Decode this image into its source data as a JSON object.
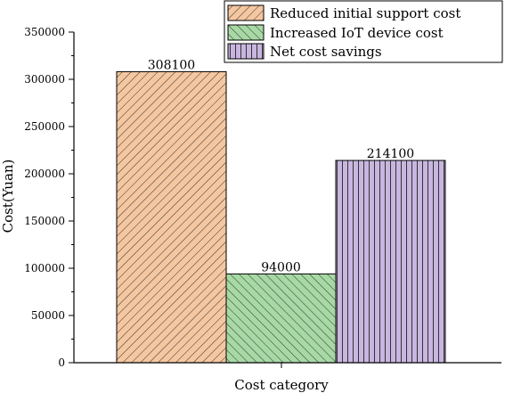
{
  "chart_data": {
    "type": "bar",
    "categories": [
      "Reduced initial support cost",
      "Increased IoT device cost",
      "Net cost savings"
    ],
    "values": [
      308100,
      94000,
      214100
    ],
    "data_labels": [
      "308100",
      "94000",
      "214100"
    ],
    "xlabel": "Cost category",
    "ylabel": "Cost(Yuan)",
    "ylim": [
      0,
      350000
    ],
    "yticks": [
      0,
      50000,
      100000,
      150000,
      200000,
      250000,
      300000,
      350000
    ],
    "ytick_labels": [
      "0",
      "50000",
      "100000",
      "150000",
      "200000",
      "250000",
      "300000",
      "350000"
    ],
    "grid": false,
    "legend_position": "top-right",
    "colors": [
      "#f5c7a0",
      "#a7d9a5",
      "#c8b6e0"
    ],
    "patterns": [
      "diagonal-slash",
      "diagonal-backslash",
      "vertical"
    ]
  }
}
